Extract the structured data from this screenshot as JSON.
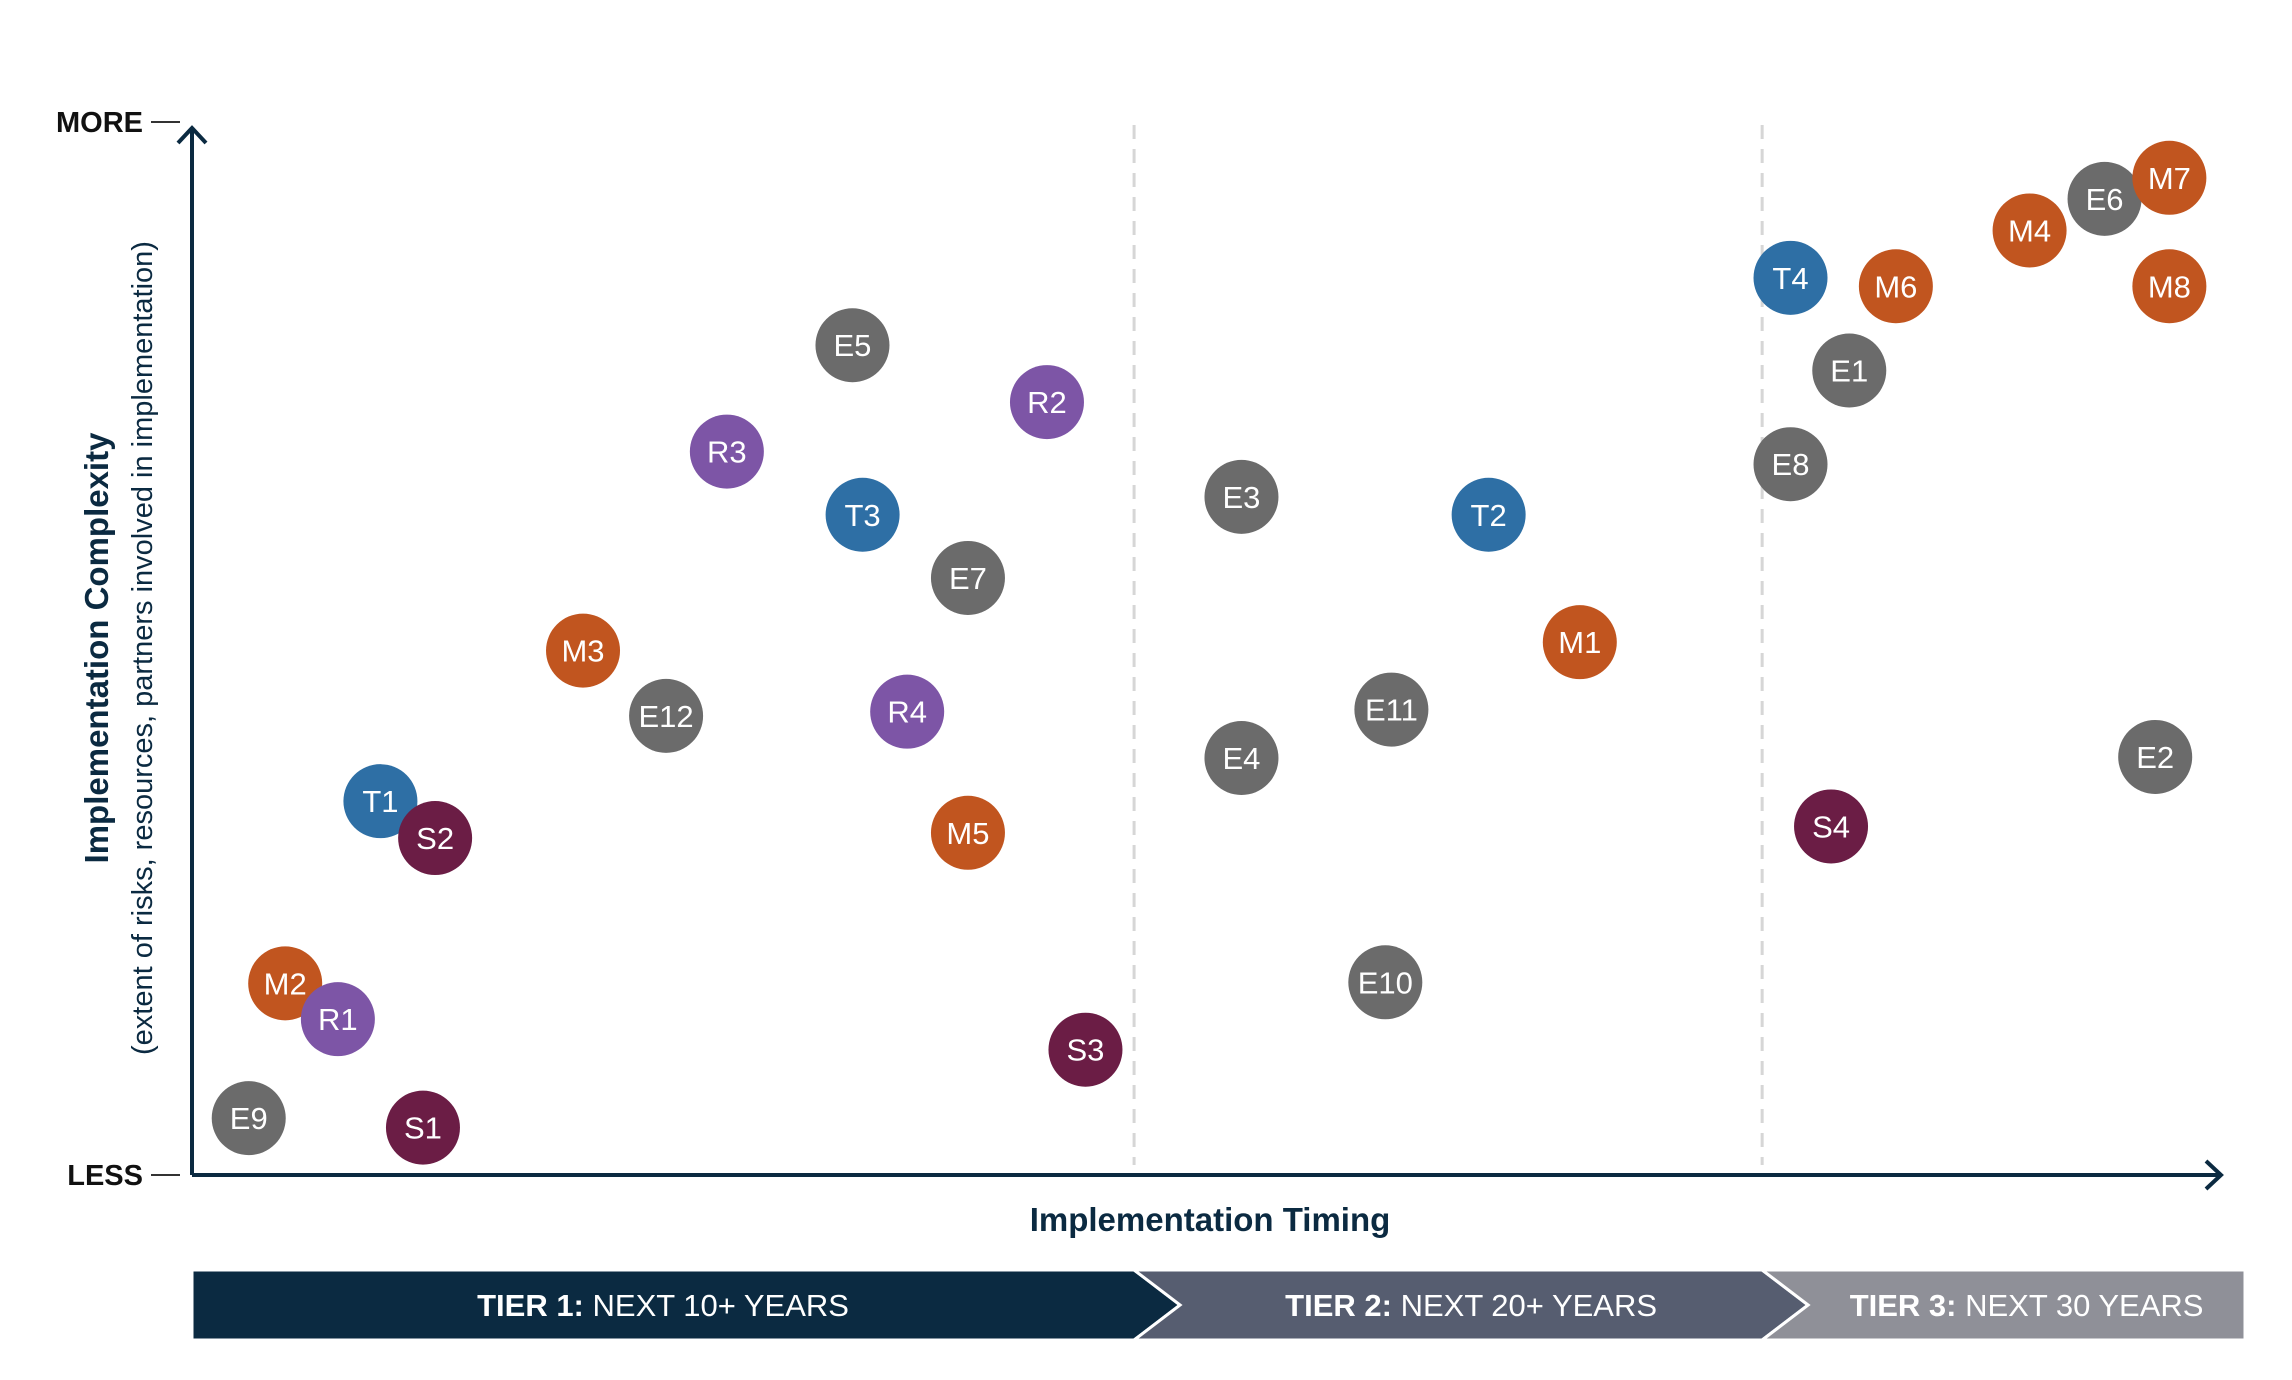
{
  "chart_data": {
    "type": "scatter",
    "xlabel": "Implementation Timing",
    "ylabel": "Implementation Complexity",
    "ylabel_sub": "(extent of risks, resources, partners involved in implementation)",
    "y_max_label": "MORE",
    "y_min_label": "LESS",
    "xlim": [
      0,
      100
    ],
    "ylim": [
      0,
      100
    ],
    "grid": false,
    "tier_dividers": [
      46.5,
      77.5
    ],
    "tiers": [
      {
        "bold": "TIER 1:",
        "text": "NEXT 10+ YEARS",
        "color": "#0b2a41"
      },
      {
        "bold": "TIER 2:",
        "text": "NEXT 20+ YEARS",
        "color": "#565d70"
      },
      {
        "bold": "TIER 3:",
        "text": "NEXT 30 YEARS",
        "color": "#8f9098"
      }
    ],
    "categories": {
      "E": "#6b6b6b",
      "M": "#c1551f",
      "T": "#2e6fa5",
      "R": "#7d55a6",
      "S": "#6b1d45"
    },
    "points": [
      {
        "label": "E9",
        "cat": "E",
        "x": 2.8,
        "y": 5.4
      },
      {
        "label": "S1",
        "cat": "S",
        "x": 11.4,
        "y": 4.5
      },
      {
        "label": "M2",
        "cat": "M",
        "x": 4.6,
        "y": 18.2
      },
      {
        "label": "R1",
        "cat": "R",
        "x": 7.2,
        "y": 14.8
      },
      {
        "label": "T1",
        "cat": "T",
        "x": 9.3,
        "y": 35.5
      },
      {
        "label": "S2",
        "cat": "S",
        "x": 12.0,
        "y": 32.0
      },
      {
        "label": "M3",
        "cat": "M",
        "x": 19.3,
        "y": 49.8
      },
      {
        "label": "E12",
        "cat": "E",
        "x": 23.4,
        "y": 43.6
      },
      {
        "label": "R3",
        "cat": "R",
        "x": 26.4,
        "y": 68.7
      },
      {
        "label": "E5",
        "cat": "E",
        "x": 32.6,
        "y": 78.8
      },
      {
        "label": "T3",
        "cat": "T",
        "x": 33.1,
        "y": 62.7
      },
      {
        "label": "R4",
        "cat": "R",
        "x": 35.3,
        "y": 44.0
      },
      {
        "label": "E7",
        "cat": "E",
        "x": 38.3,
        "y": 56.7
      },
      {
        "label": "M5",
        "cat": "M",
        "x": 38.3,
        "y": 32.5
      },
      {
        "label": "R2",
        "cat": "R",
        "x": 42.2,
        "y": 73.4
      },
      {
        "label": "S3",
        "cat": "S",
        "x": 44.1,
        "y": 11.9
      },
      {
        "label": "E3",
        "cat": "E",
        "x": 51.8,
        "y": 64.4
      },
      {
        "label": "E4",
        "cat": "E",
        "x": 51.8,
        "y": 39.6
      },
      {
        "label": "E11",
        "cat": "E",
        "x": 59.2,
        "y": 44.2
      },
      {
        "label": "E10",
        "cat": "E",
        "x": 58.9,
        "y": 18.3
      },
      {
        "label": "T2",
        "cat": "T",
        "x": 64.0,
        "y": 62.7
      },
      {
        "label": "M1",
        "cat": "M",
        "x": 68.5,
        "y": 50.6
      },
      {
        "label": "T4",
        "cat": "T",
        "x": 78.9,
        "y": 85.2
      },
      {
        "label": "E8",
        "cat": "E",
        "x": 78.9,
        "y": 67.5
      },
      {
        "label": "E1",
        "cat": "E",
        "x": 81.8,
        "y": 76.4
      },
      {
        "label": "S4",
        "cat": "S",
        "x": 80.9,
        "y": 33.1
      },
      {
        "label": "M6",
        "cat": "M",
        "x": 84.1,
        "y": 84.4
      },
      {
        "label": "M4",
        "cat": "M",
        "x": 90.7,
        "y": 89.7
      },
      {
        "label": "E6",
        "cat": "E",
        "x": 94.4,
        "y": 92.7
      },
      {
        "label": "M7",
        "cat": "M",
        "x": 97.6,
        "y": 94.7
      },
      {
        "label": "M8",
        "cat": "M",
        "x": 97.6,
        "y": 84.4
      },
      {
        "label": "E2",
        "cat": "E",
        "x": 96.9,
        "y": 39.7
      }
    ]
  }
}
